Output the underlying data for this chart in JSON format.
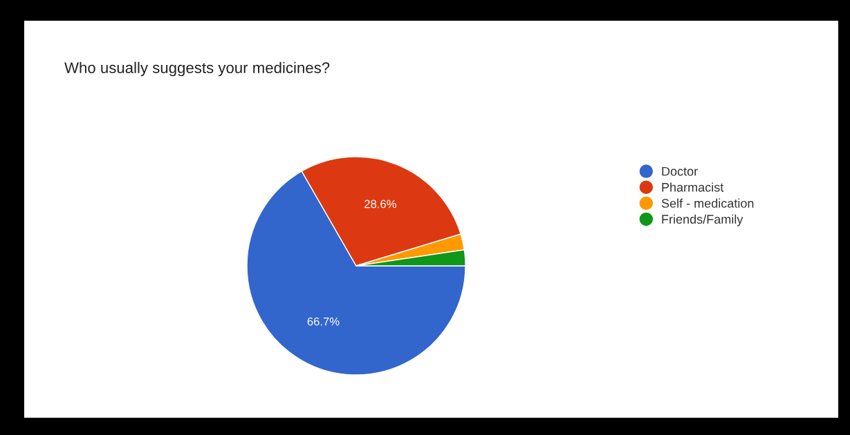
{
  "chart_data": {
    "type": "pie",
    "title": "Who usually suggests your medicines?",
    "categories": [
      "Doctor",
      "Pharmacist",
      "Self - medication",
      "Friends/Family"
    ],
    "values": [
      66.7,
      28.6,
      2.35,
      2.35
    ],
    "colors": [
      "#3366cc",
      "#dc3912",
      "#ff9900",
      "#109618"
    ],
    "value_labels": [
      "66.7%",
      "28.6%",
      null,
      null
    ],
    "legend": "right"
  }
}
